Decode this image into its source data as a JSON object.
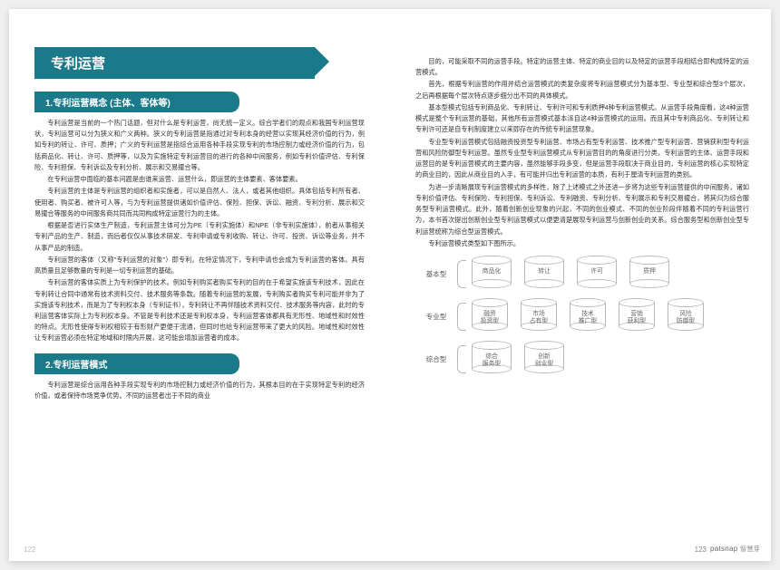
{
  "left": {
    "title": "专利运营",
    "section1": {
      "heading": "1.专利运营概念 (主体、客体等)",
      "paragraphs": [
        "专利运营是当前的一个热门话题，但对什么是专利运营，尚无统一定义。综合学者们的观点和我国专利运营现状，专利运营可以分为狭义和广义两种。狭义的专利运营是指通过对专利本身的经营以实现其经济价值的行为，例如专利的转让、许可、质押；广义的专利运营是指综合运用各种手段实现专利的市场控制力或经济价值的行为，包括商品化、转让、许可、质押等，以及为实施特定专利运营目的进行的各种中间服务，例如专利价值评估、专利保险、专利担保、专利诉讼及专利分析、展示和交易撮合等。",
        "在专利运营中面临的基本问题是由谁来运营、运营什么，即运营的主体要素、客体要素。",
        "专利运营的主体是专利运营的组织者和实施者，可以是自然人、法人，或者其他组织。具体包括专利所有者、使用者、购买者、被许可人等，与为专利运营提供诸如价值评估、保险、担保、诉讼、融资、专利分析、展示和交易撮合等服务的中间服务商共同而共同构成特定运营行为的主体。",
        "根据是否进行实体生产制造，专利运营主体可分为PE（专利实施体）和NPE（非专利实施体），前者从事相关专利产品的生产、制造，而后者仅仅从事技术研发、专利申请或专利收购、转让、许可、投资、诉讼等业务，并不从事产品的制造。",
        "专利运营的客体（又称\"专利运营的对象\"）即专利。在特定情况下，专利申请也会成为专利运营的客体。具有高质量且足够数量的专利是一切专利运营的基础。",
        "专利运营的客体实质上为专利保护的技术。例如专利购买者购买专利的目的在于希望实施该专利技术，因此在专利转让合同中通常有技术资料交付、技术服务等条款。随着专利运营的发展，专利购买者购买专利可能并非为了实施该专利技术，而是为了专利权本身（专利证书），专利转让不再伴随技术资料交付、技术服务等内容，此时的专利运营客体实际上为专利权本身。不管是专利技术还是专利权本身，专利运营客体都具有无形性、地域性和时效性的特点。无形性使得专利权相较于有形财产更便于流通，但同时也给专利运营带来了更大的风险。地域性和时效性让专利运营必须在特定地域和时限内开展，这可能会增加运营者的成本。"
      ]
    },
    "section2": {
      "heading": "2.专利运营模式",
      "paragraphs": [
        "专利运营是综合运用各种手段实现专利的市场控制力或经济价值的行为，其根本目的在于实现特定专利的经济价值，或者保持市场竞争优势。不同的运营者出于不同的商业"
      ]
    },
    "pageNum": "122"
  },
  "right": {
    "paragraphs": [
      "目的，可能采取不同的运营手段。特定的运营主体、特定的商业目的以及特定的运营手段相结合即构成特定的运营模式。",
      "首先，根据专利运营的作用并结合运营模式的类复杂度将专利运营模式分为基本型、专业型和综合型3个层次，之后再根据每个层次特点逐步细分出不同的具体模式。",
      "基本型模式包括专利商品化、专利转让、专利许可和专利质押4种专利运营模式。从运营手段角度看，这4种运营模式是整个专利运营的基础，其他所有运营模式基本派自这4种运营模式的运用。而且其中专利商品化、专利转让和专利许可还是自专利制度建立以来即存在的传统专利运营现象。",
      "专业型专利运营模式包括融资投资型专利运营、市场占有型专利运营、技术推广型专利运营、营销获利型专利运营和风险防御型专利运营。虽然专业型专利运营模式从专利运营目的的角度进行分类，专利运营的主体、运营手段和运营目的是专利运营模式的主要内容，虽然能够手段多变，但是运营手段取决于商业目的，专利运营的核心实现特定的商业目的，因此从商业目的入手，有可能并归出专利运营的本质，有利于厘清专利运营的类别。",
      "为进一步清晰展现专利运营模式的多样性，除了上述模式之外还进一步将为这些专利运营提供的中间服务，诸如专利价值评估、专利保险、专利担保、专利诉讼、专利融资、专利分析、专利展示和专利交易撮合，将其归为综合服务型专利运营模式。此外，随着创新创业现象的兴起，不同的创业模式、不同的创业阶段伴随着不同的专利运营行为，本书首次提出创新创业型专利运营模式以便更清楚展现专利运营与创新创业的关系。综合服务型和创新创业型专利运营统称为综合型运营模式。",
      "专利运营模式类型如下图所示。"
    ],
    "diagram": {
      "rows": [
        {
          "label": "基本型",
          "items": [
            "商品化",
            "转让",
            "许可",
            "质押"
          ]
        },
        {
          "label": "专业型",
          "items": [
            "融资\n投资型",
            "市场\n占有型",
            "技术\n推广型",
            "营销\n获利型",
            "风险\n防御型"
          ]
        },
        {
          "label": "综合型",
          "items": [
            "综合\n服务型",
            "创新\n创业型"
          ]
        }
      ]
    },
    "pageNum": "123",
    "brand": "patsnap",
    "brand_cn": "智慧芽"
  }
}
